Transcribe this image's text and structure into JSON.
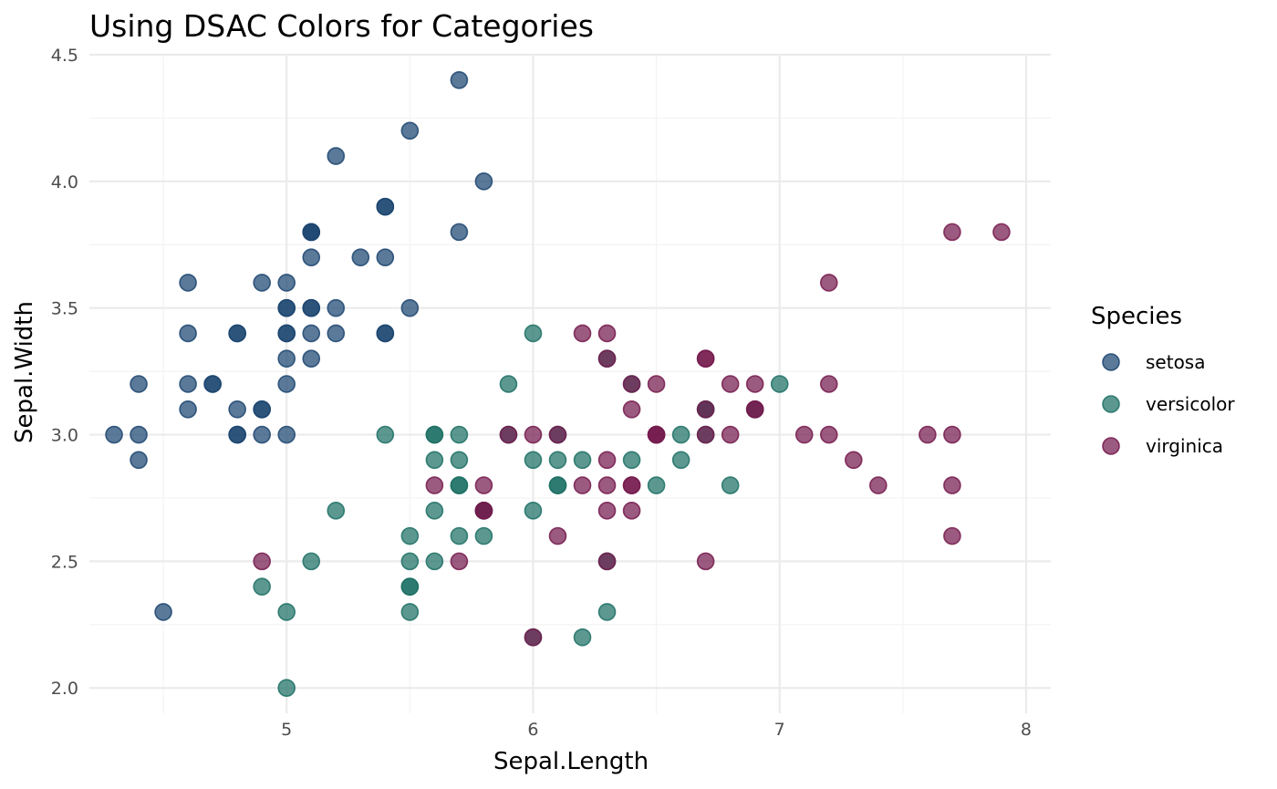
{
  "chart_data": {
    "type": "scatter",
    "title": "Using DSAC Colors for Categories",
    "xlabel": "Sepal.Length",
    "ylabel": "Sepal.Width",
    "xlim": [
      4.2,
      8.1
    ],
    "ylim": [
      1.9,
      4.5
    ],
    "x_ticks": [
      5,
      6,
      7,
      8
    ],
    "x_tick_labels": [
      "5",
      "6",
      "7",
      "8"
    ],
    "y_ticks": [
      2.0,
      2.5,
      3.0,
      3.5,
      4.0,
      4.5
    ],
    "y_tick_labels": [
      "2.0",
      "2.5",
      "3.0",
      "3.5",
      "4.0",
      "4.5"
    ],
    "grid": true,
    "legend": {
      "title": "Species",
      "position": "right"
    },
    "series": [
      {
        "name": "setosa",
        "color": "#1c4570",
        "points": [
          [
            5.1,
            3.5
          ],
          [
            4.9,
            3.0
          ],
          [
            4.7,
            3.2
          ],
          [
            4.6,
            3.1
          ],
          [
            5.0,
            3.6
          ],
          [
            5.4,
            3.9
          ],
          [
            4.6,
            3.4
          ],
          [
            5.0,
            3.4
          ],
          [
            4.4,
            2.9
          ],
          [
            4.9,
            3.1
          ],
          [
            5.4,
            3.7
          ],
          [
            4.8,
            3.4
          ],
          [
            4.8,
            3.0
          ],
          [
            4.3,
            3.0
          ],
          [
            5.8,
            4.0
          ],
          [
            5.7,
            4.4
          ],
          [
            5.4,
            3.9
          ],
          [
            5.1,
            3.5
          ],
          [
            5.7,
            3.8
          ],
          [
            5.1,
            3.8
          ],
          [
            5.4,
            3.4
          ],
          [
            5.1,
            3.7
          ],
          [
            4.6,
            3.6
          ],
          [
            5.1,
            3.3
          ],
          [
            4.8,
            3.4
          ],
          [
            5.0,
            3.0
          ],
          [
            5.0,
            3.4
          ],
          [
            5.2,
            3.5
          ],
          [
            5.2,
            3.4
          ],
          [
            4.7,
            3.2
          ],
          [
            4.8,
            3.1
          ],
          [
            5.4,
            3.4
          ],
          [
            5.2,
            4.1
          ],
          [
            5.5,
            4.2
          ],
          [
            4.9,
            3.1
          ],
          [
            5.0,
            3.2
          ],
          [
            5.5,
            3.5
          ],
          [
            4.9,
            3.6
          ],
          [
            4.4,
            3.0
          ],
          [
            5.1,
            3.4
          ],
          [
            5.0,
            3.5
          ],
          [
            4.5,
            2.3
          ],
          [
            4.4,
            3.2
          ],
          [
            5.0,
            3.5
          ],
          [
            5.1,
            3.8
          ],
          [
            4.8,
            3.0
          ],
          [
            5.1,
            3.8
          ],
          [
            4.6,
            3.2
          ],
          [
            5.3,
            3.7
          ],
          [
            5.0,
            3.3
          ]
        ]
      },
      {
        "name": "versicolor",
        "color": "#1d7065",
        "points": [
          [
            7.0,
            3.2
          ],
          [
            6.4,
            3.2
          ],
          [
            6.9,
            3.1
          ],
          [
            5.5,
            2.3
          ],
          [
            6.5,
            2.8
          ],
          [
            5.7,
            2.8
          ],
          [
            6.3,
            3.3
          ],
          [
            4.9,
            2.4
          ],
          [
            6.6,
            2.9
          ],
          [
            5.2,
            2.7
          ],
          [
            5.0,
            2.0
          ],
          [
            5.9,
            3.0
          ],
          [
            6.0,
            2.2
          ],
          [
            6.1,
            2.9
          ],
          [
            5.6,
            2.9
          ],
          [
            6.7,
            3.1
          ],
          [
            5.6,
            3.0
          ],
          [
            5.8,
            2.7
          ],
          [
            6.2,
            2.2
          ],
          [
            5.6,
            2.5
          ],
          [
            5.9,
            3.2
          ],
          [
            6.1,
            2.8
          ],
          [
            6.3,
            2.5
          ],
          [
            6.1,
            2.8
          ],
          [
            6.4,
            2.9
          ],
          [
            6.6,
            3.0
          ],
          [
            6.8,
            2.8
          ],
          [
            6.7,
            3.0
          ],
          [
            6.0,
            2.9
          ],
          [
            5.7,
            2.6
          ],
          [
            5.5,
            2.4
          ],
          [
            5.5,
            2.4
          ],
          [
            5.8,
            2.7
          ],
          [
            6.0,
            2.7
          ],
          [
            5.4,
            3.0
          ],
          [
            6.0,
            3.4
          ],
          [
            6.7,
            3.1
          ],
          [
            6.3,
            2.3
          ],
          [
            5.6,
            3.0
          ],
          [
            5.5,
            2.5
          ],
          [
            5.5,
            2.6
          ],
          [
            6.1,
            3.0
          ],
          [
            5.8,
            2.6
          ],
          [
            5.0,
            2.3
          ],
          [
            5.6,
            2.7
          ],
          [
            5.7,
            3.0
          ],
          [
            5.7,
            2.9
          ],
          [
            6.2,
            2.9
          ],
          [
            5.1,
            2.5
          ],
          [
            5.7,
            2.8
          ]
        ]
      },
      {
        "name": "virginica",
        "color": "#751a4d",
        "points": [
          [
            6.3,
            3.3
          ],
          [
            5.8,
            2.7
          ],
          [
            7.1,
            3.0
          ],
          [
            6.3,
            2.9
          ],
          [
            6.5,
            3.0
          ],
          [
            7.6,
            3.0
          ],
          [
            4.9,
            2.5
          ],
          [
            7.3,
            2.9
          ],
          [
            6.7,
            2.5
          ],
          [
            7.2,
            3.6
          ],
          [
            6.5,
            3.2
          ],
          [
            6.4,
            2.7
          ],
          [
            6.8,
            3.0
          ],
          [
            5.7,
            2.5
          ],
          [
            5.8,
            2.8
          ],
          [
            6.4,
            3.2
          ],
          [
            6.5,
            3.0
          ],
          [
            7.7,
            3.8
          ],
          [
            7.7,
            2.6
          ],
          [
            6.0,
            2.2
          ],
          [
            6.9,
            3.2
          ],
          [
            5.6,
            2.8
          ],
          [
            7.7,
            2.8
          ],
          [
            6.3,
            2.7
          ],
          [
            6.7,
            3.3
          ],
          [
            7.2,
            3.2
          ],
          [
            6.2,
            2.8
          ],
          [
            6.1,
            3.0
          ],
          [
            6.4,
            2.8
          ],
          [
            7.2,
            3.0
          ],
          [
            7.4,
            2.8
          ],
          [
            7.9,
            3.8
          ],
          [
            6.4,
            2.8
          ],
          [
            6.3,
            2.8
          ],
          [
            6.1,
            2.6
          ],
          [
            7.7,
            3.0
          ],
          [
            6.3,
            3.4
          ],
          [
            6.4,
            3.1
          ],
          [
            6.0,
            3.0
          ],
          [
            6.9,
            3.1
          ],
          [
            6.7,
            3.1
          ],
          [
            6.9,
            3.1
          ],
          [
            5.8,
            2.7
          ],
          [
            6.8,
            3.2
          ],
          [
            6.7,
            3.3
          ],
          [
            6.7,
            3.0
          ],
          [
            6.3,
            2.5
          ],
          [
            6.5,
            3.0
          ],
          [
            6.2,
            3.4
          ],
          [
            5.9,
            3.0
          ]
        ]
      }
    ]
  }
}
